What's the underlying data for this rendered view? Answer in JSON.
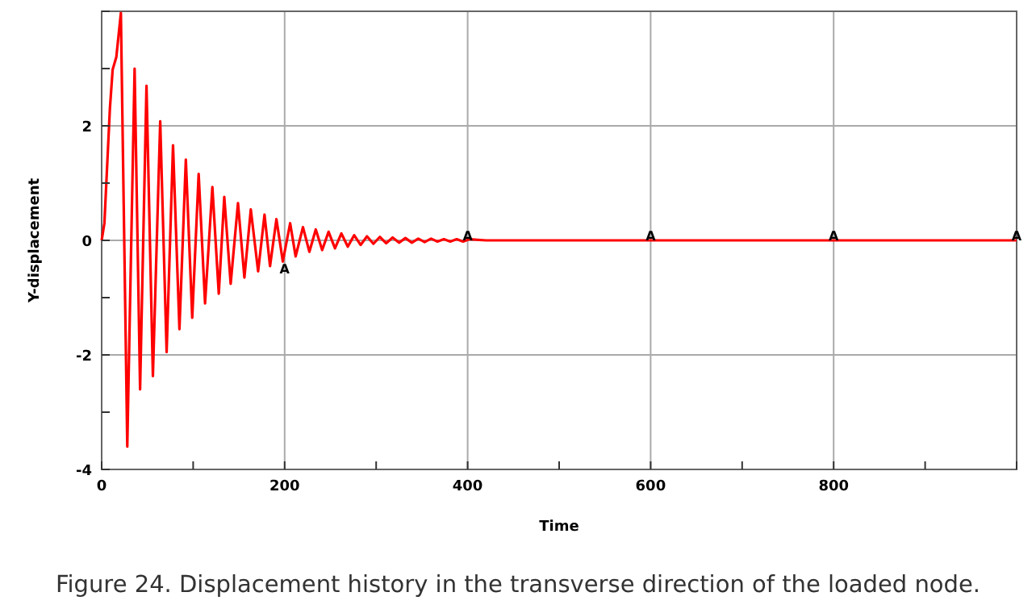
{
  "chart_data": {
    "type": "line",
    "xlabel": "Time",
    "ylabel": "Y-displacement",
    "xlim": [
      0,
      1000
    ],
    "ylim": [
      -4,
      4
    ],
    "xticks": [
      0,
      {
        "value": 100,
        "label": null
      },
      200,
      {
        "value": 300,
        "label": null
      },
      400,
      {
        "value": 500,
        "label": null
      },
      600,
      {
        "value": 700,
        "label": null
      },
      800,
      {
        "value": 900,
        "label": null
      },
      {
        "value": 1000,
        "label": null
      }
    ],
    "yticks": [
      -4,
      {
        "value": -3,
        "label": null
      },
      -2,
      {
        "value": -1,
        "label": null
      },
      0,
      {
        "value": 1,
        "label": null
      },
      2,
      {
        "value": 3,
        "label": null
      },
      {
        "value": 4,
        "label": null
      }
    ],
    "grid": true,
    "marker": "none",
    "line_style": "solid",
    "series": [
      {
        "color": "#ff0000",
        "x": [
          0,
          3,
          9,
          12,
          16,
          21,
          28,
          36,
          42,
          49,
          56,
          64,
          71,
          78,
          85,
          92,
          99,
          106,
          113,
          121,
          128,
          134,
          141,
          149,
          156,
          163,
          171,
          178,
          184,
          191,
          198,
          206,
          212,
          220,
          227,
          234,
          241,
          248,
          255,
          262,
          269,
          276,
          283,
          290,
          297,
          304,
          311,
          318,
          325,
          332,
          339,
          346,
          353,
          360,
          367,
          374,
          381,
          388,
          395,
          402,
          420,
          500,
          600,
          700,
          800,
          900,
          1000
        ],
        "values": [
          0,
          0.3,
          2.3,
          2.98,
          3.2,
          3.97,
          -3.6,
          3.0,
          -2.6,
          2.7,
          -2.37,
          2.08,
          -1.95,
          1.66,
          -1.55,
          1.41,
          -1.35,
          1.16,
          -1.1,
          0.93,
          -0.93,
          0.76,
          -0.76,
          0.65,
          -0.65,
          0.54,
          -0.54,
          0.45,
          -0.45,
          0.37,
          -0.37,
          0.3,
          -0.28,
          0.23,
          -0.2,
          0.19,
          -0.17,
          0.15,
          -0.14,
          0.12,
          -0.11,
          0.09,
          -0.08,
          0.07,
          -0.06,
          0.06,
          -0.05,
          0.05,
          -0.04,
          0.04,
          -0.04,
          0.03,
          -0.03,
          0.03,
          -0.02,
          0.02,
          -0.02,
          0.02,
          -0.02,
          0.02,
          0,
          0,
          0,
          0,
          0,
          0,
          0
        ]
      }
    ],
    "annotations": [
      {
        "text": "A",
        "x": 200,
        "y": -0.3
      },
      {
        "text": "A",
        "x": 400,
        "y": 0
      },
      {
        "text": "A",
        "x": 600,
        "y": 0
      },
      {
        "text": "A",
        "x": 800,
        "y": 0
      },
      {
        "text": "A",
        "x": 1000,
        "y": 0
      },
      "Figure 24. Displacement history in the transverse direction of the loaded node."
    ]
  }
}
